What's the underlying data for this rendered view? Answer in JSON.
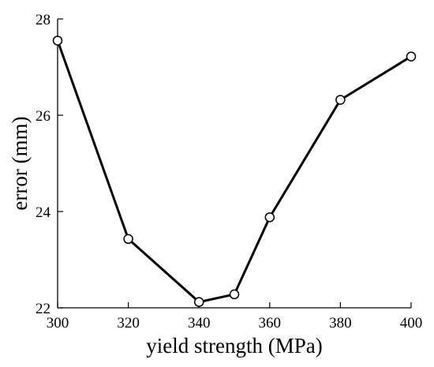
{
  "chart_data": {
    "type": "line",
    "xlabel": "yield strength (MPa)",
    "ylabel": "error (mm)",
    "xlim": [
      300,
      400
    ],
    "ylim": [
      22,
      28
    ],
    "x_ticks": [
      300,
      320,
      340,
      360,
      380,
      400
    ],
    "y_ticks": [
      22,
      24,
      26,
      28
    ],
    "x_tick_labels": [
      "300",
      "320",
      "340",
      "360",
      "380",
      "400"
    ],
    "y_tick_labels": [
      "22",
      "24",
      "26",
      "28"
    ],
    "grid": false,
    "series": [
      {
        "x": [
          300,
          320,
          340,
          350,
          360,
          380,
          400
        ],
        "y": [
          27.55,
          23.43,
          22.12,
          22.28,
          23.88,
          26.32,
          27.22
        ],
        "color": "#000000",
        "marker": "open-circle"
      }
    ]
  }
}
